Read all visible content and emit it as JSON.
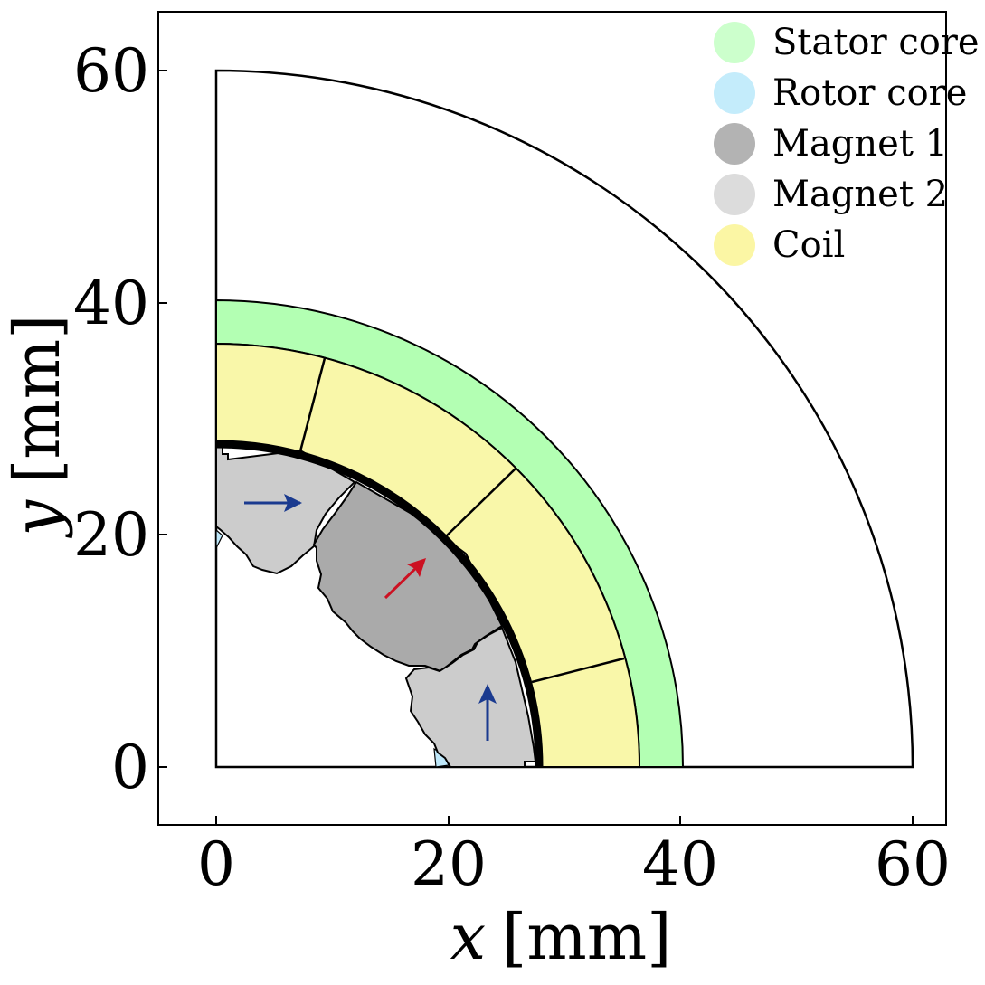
{
  "figure": {
    "x_axis": {
      "var": "x",
      "unit": "[mm]",
      "range": [
        -5,
        63
      ],
      "ticks": [
        "0",
        "20",
        "40",
        "60"
      ]
    },
    "y_axis": {
      "var": "y",
      "unit": "[mm]",
      "range": [
        -5,
        65
      ],
      "ticks": [
        "0",
        "20",
        "40",
        "60"
      ]
    }
  },
  "legend": [
    {
      "label": "Stator core",
      "color": "#ccffcc"
    },
    {
      "label": "Rotor core",
      "color": "#c4ecfb"
    },
    {
      "label": "Magnet 1",
      "color": "#b3b3b3"
    },
    {
      "label": "Magnet 2",
      "color": "#dcdcdc"
    },
    {
      "label": "Coil",
      "color": "#fbf6a4"
    }
  ],
  "geometry": {
    "outer_boundary_radius": 60,
    "stator_outer_radius": 40,
    "stator_inner_radius": 36.3,
    "coil_inner_radius": 27.6,
    "rotor_outer_radius": 27.7
  },
  "colors": {
    "stator": "#b3ffb3",
    "coil": "#f9f7a9",
    "magnet1": "#aaaaaa",
    "magnet2": "#cccccc",
    "rotor": "#bfe8fa",
    "arrow_blue": "#1a3a8f",
    "arrow_red": "#cc1122"
  }
}
